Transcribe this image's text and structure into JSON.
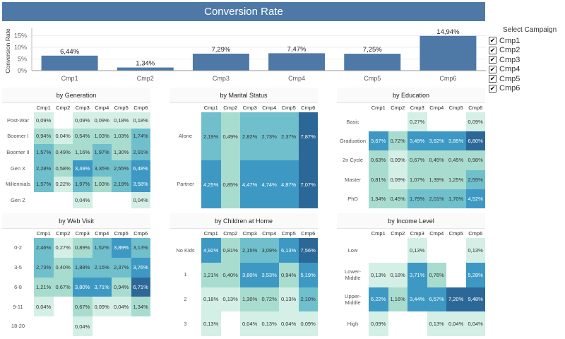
{
  "header": {
    "title": "Conversion Rate"
  },
  "legend": {
    "title": "Select Campaign",
    "items": [
      {
        "label": "Cmp1",
        "checked": "✔"
      },
      {
        "label": "Cmp2",
        "checked": "✔"
      },
      {
        "label": "Cmp3",
        "checked": "✔"
      },
      {
        "label": "Cmp4",
        "checked": "✔"
      },
      {
        "label": "Cmp5",
        "checked": "✔"
      },
      {
        "label": "Cmp6",
        "checked": "✔"
      }
    ]
  },
  "colors": {
    "bar": "#4e79a7",
    "scale": [
      "#d4efe6",
      "#a8dccf",
      "#6fbfcc",
      "#3d99c4",
      "#2c6897"
    ]
  },
  "chart_data": [
    {
      "type": "bar",
      "title": "Conversion Rate",
      "ylabel": "Conversion Rate",
      "categories": [
        "Cmp1",
        "Cmp2",
        "Cmp3",
        "Cmp4",
        "Cmp5",
        "Cmp6"
      ],
      "values": [
        6.44,
        1.34,
        7.29,
        7.47,
        7.25,
        14.94
      ],
      "value_labels": [
        "6,44%",
        "1,34%",
        "7,29%",
        "7,47%",
        "7,25%",
        "14,94%"
      ],
      "yticks": [
        "15%",
        "10%",
        "5%",
        "0%"
      ],
      "ytick_values": [
        15,
        10,
        5,
        0
      ],
      "ylim": [
        0,
        17
      ]
    },
    {
      "type": "heatmap",
      "title": "by Generation",
      "columns": [
        "Cmp1",
        "Cmp2",
        "Cmp3",
        "Cmp4",
        "Cmp5",
        "Cmp6"
      ],
      "rows": [
        "Post-War",
        "Boomer I",
        "Boomer II",
        "Gen X",
        "Millennials",
        "Gen Z"
      ],
      "values": [
        [
          0.09,
          null,
          0.09,
          0.09,
          0.18,
          0.18
        ],
        [
          0.94,
          0.04,
          0.54,
          1.03,
          1.03,
          1.74
        ],
        [
          1.57,
          0.49,
          1.16,
          1.97,
          1.3,
          2.91
        ],
        [
          2.28,
          0.58,
          3.49,
          3.35,
          2.55,
          6.48
        ],
        [
          1.57,
          0.22,
          1.97,
          1.03,
          2.19,
          3.58
        ],
        [
          null,
          null,
          0.04,
          null,
          null,
          0.04
        ]
      ],
      "labels": [
        [
          "0,09%",
          "",
          "0,09%",
          "0,09%",
          "0,18%",
          "0,18%"
        ],
        [
          "0,94%",
          "0,04%",
          "0,54%",
          "1,03%",
          "1,03%",
          "1,74%"
        ],
        [
          "1,57%",
          "0,49%",
          "1,16%",
          "1,97%",
          "1,30%",
          "2,91%"
        ],
        [
          "2,28%",
          "0,58%",
          "3,49%",
          "3,35%",
          "2,55%",
          "6,48%"
        ],
        [
          "1,57%",
          "0,22%",
          "1,97%",
          "1,03%",
          "2,19%",
          "3,58%"
        ],
        [
          "",
          "",
          "0,04%",
          "",
          "",
          "0,04%"
        ]
      ]
    },
    {
      "type": "heatmap",
      "title": "by Marital Status",
      "columns": [
        "Cmp1",
        "Cmp2",
        "Cmp3",
        "Cmp4",
        "Cmp5",
        "Cmp6"
      ],
      "rows": [
        "Alone",
        "Partner"
      ],
      "values": [
        [
          2.19,
          0.49,
          2.82,
          2.73,
          2.37,
          7.87
        ],
        [
          4.25,
          0.85,
          4.47,
          4.74,
          4.87,
          7.07
        ]
      ],
      "labels": [
        [
          "2,19%",
          "0,49%",
          "2,82%",
          "2,73%",
          "2,37%",
          "7,87%"
        ],
        [
          "4,25%",
          "0,85%",
          "4,47%",
          "4,74%",
          "4,87%",
          "7,07%"
        ]
      ]
    },
    {
      "type": "heatmap",
      "title": "by Education",
      "columns": [
        "Cmp1",
        "Cmp2",
        "Cmp3",
        "Cmp4",
        "Cmp5",
        "Cmp6"
      ],
      "rows": [
        "Basic",
        "Graduation",
        "2n Cycle",
        "Master",
        "PhD"
      ],
      "values": [
        [
          null,
          null,
          0.27,
          null,
          null,
          0.09
        ],
        [
          3.67,
          0.72,
          3.49,
          3.62,
          3.85,
          6.8
        ],
        [
          0.63,
          0.09,
          0.67,
          0.45,
          0.45,
          0.98
        ],
        [
          0.81,
          0.09,
          1.07,
          1.39,
          1.25,
          2.55
        ],
        [
          1.34,
          0.45,
          1.79,
          2.01,
          1.7,
          4.52
        ]
      ],
      "labels": [
        [
          "",
          "",
          "0,27%",
          "",
          "",
          "0,09%"
        ],
        [
          "3,67%",
          "0,72%",
          "3,49%",
          "3,62%",
          "3,85%",
          "6,80%"
        ],
        [
          "0,63%",
          "0,09%",
          "0,67%",
          "0,45%",
          "0,45%",
          "0,98%"
        ],
        [
          "0,81%",
          "0,09%",
          "1,07%",
          "1,39%",
          "1,25%",
          "2,55%"
        ],
        [
          "1,34%",
          "0,45%",
          "1,79%",
          "2,01%",
          "1,70%",
          "4,52%"
        ]
      ]
    },
    {
      "type": "heatmap",
      "title": "by Web Visit",
      "columns": [
        "Cmp1",
        "Cmp2",
        "Cmp3",
        "Cmp4",
        "Cmp5",
        "Cmp6"
      ],
      "rows": [
        "0-2",
        "3-5",
        "6-8",
        "9-11",
        "18-20"
      ],
      "values": [
        [
          2.46,
          0.27,
          0.89,
          1.52,
          3.89,
          3.13
        ],
        [
          2.73,
          0.4,
          1.88,
          2.15,
          2.37,
          3.76
        ],
        [
          1.21,
          0.67,
          3.8,
          3.71,
          0.94,
          6.71
        ],
        [
          0.04,
          null,
          0.67,
          0.09,
          0.04,
          1.34
        ],
        [
          null,
          null,
          0.04,
          null,
          null,
          null
        ]
      ],
      "labels": [
        [
          "2,46%",
          "0,27%",
          "0,89%",
          "1,52%",
          "3,89%",
          "3,13%"
        ],
        [
          "2,73%",
          "0,40%",
          "1,88%",
          "2,15%",
          "2,37%",
          "3,76%"
        ],
        [
          "1,21%",
          "0,67%",
          "3,80%",
          "3,71%",
          "0,94%",
          "6,71%"
        ],
        [
          "0,04%",
          "",
          "0,67%",
          "0,09%",
          "0,04%",
          "1,34%"
        ],
        [
          "",
          "",
          "0,04%",
          "",
          "",
          ""
        ]
      ]
    },
    {
      "type": "heatmap",
      "title": "by Children at Home",
      "columns": [
        "Cmp1",
        "Cmp2",
        "Cmp3",
        "Cmp4",
        "Cmp5",
        "Cmp6"
      ],
      "rows": [
        "No Kids",
        "1",
        "2",
        "3"
      ],
      "values": [
        [
          4.92,
          0.81,
          2.15,
          3.09,
          6.13,
          7.56
        ],
        [
          1.21,
          0.4,
          3.8,
          3.53,
          0.94,
          5.19
        ],
        [
          0.18,
          0.13,
          1.3,
          0.72,
          0.13,
          2.1
        ],
        [
          0.13,
          null,
          0.04,
          0.13,
          0.04,
          0.09
        ]
      ],
      "labels": [
        [
          "4,92%",
          "0,81%",
          "2,15%",
          "3,09%",
          "6,13%",
          "7,56%"
        ],
        [
          "1,21%",
          "0,40%",
          "3,80%",
          "3,53%",
          "0,94%",
          "5,19%"
        ],
        [
          "0,18%",
          "0,13%",
          "1,30%",
          "0,72%",
          "0,13%",
          "2,10%"
        ],
        [
          "0,13%",
          "",
          "0,04%",
          "0,13%",
          "0,04%",
          "0,09%"
        ]
      ]
    },
    {
      "type": "heatmap",
      "title": "by Income Level",
      "columns": [
        "Cmp1",
        "Cmp2",
        "Cmp3",
        "Cmp4",
        "Cmp5",
        "Cmp6"
      ],
      "rows": [
        "Low",
        "Lower-\nMiddle",
        "Upper-\nMiddle",
        "High"
      ],
      "values": [
        [
          null,
          null,
          0.13,
          null,
          null,
          0.13
        ],
        [
          0.13,
          0.18,
          3.71,
          0.76,
          null,
          5.28
        ],
        [
          6.22,
          1.16,
          3.44,
          6.57,
          7.2,
          9.48
        ],
        [
          0.09,
          null,
          null,
          0.13,
          0.04,
          0.04
        ]
      ],
      "labels": [
        [
          "",
          "",
          "0,13%",
          "",
          "",
          "0,13%"
        ],
        [
          "0,13%",
          "0,18%",
          "3,71%",
          "0,76%",
          "",
          "5,28%"
        ],
        [
          "6,22%",
          "1,16%",
          "3,44%",
          "6,57%",
          "7,20%",
          "9,48%"
        ],
        [
          "0,09%",
          "",
          "",
          "0,13%",
          "0,04%",
          "0,04%"
        ]
      ]
    }
  ]
}
